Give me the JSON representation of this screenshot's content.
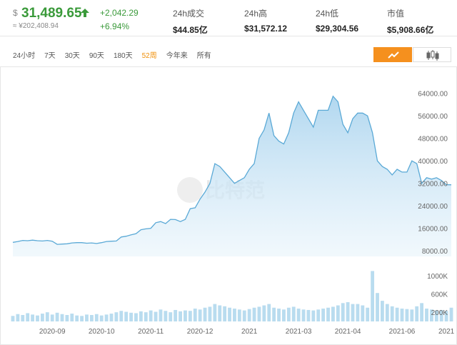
{
  "header": {
    "currency_symbol": "$",
    "price": "31,489.65",
    "cny_price": "≈ ¥202,408.94",
    "change": "+2,042.29",
    "change_percent": "+6.94%",
    "stats": [
      {
        "label": "24h成交",
        "value": "$44.85亿"
      },
      {
        "label": "24h高",
        "value": "$31,572.12"
      },
      {
        "label": "24h低",
        "value": "$29,304.56"
      },
      {
        "label": "市值",
        "value": "$5,908.66亿"
      }
    ]
  },
  "tabs": [
    "24小时",
    "7天",
    "30天",
    "90天",
    "180天",
    "52周",
    "今年来",
    "所有"
  ],
  "active_tab": 5,
  "watermark": "比特范",
  "chart_data": [
    {
      "type": "area",
      "color": "#5aa9d6",
      "grid": false,
      "values": [
        11000,
        11300,
        11700,
        11600,
        11800,
        11600,
        11500,
        11700,
        11400,
        10300,
        10400,
        10500,
        10800,
        10900,
        10900,
        10700,
        10800,
        10600,
        10900,
        11300,
        11400,
        11500,
        12900,
        13200,
        13700,
        14100,
        15500,
        15800,
        16000,
        18000,
        18400,
        17700,
        19200,
        19100,
        18400,
        19200,
        23000,
        23300,
        26400,
        28900,
        32000,
        39000,
        38000,
        36000,
        34000,
        32000,
        33000,
        34000,
        37000,
        39000,
        48000,
        51000,
        57000,
        49000,
        47000,
        46000,
        50000,
        57000,
        61000,
        58000,
        55000,
        52000,
        58000,
        58000,
        58000,
        63000,
        61000,
        53000,
        50000,
        55000,
        57000,
        57000,
        56000,
        50000,
        40000,
        38000,
        37000,
        35000,
        37000,
        36000,
        36000,
        40000,
        39000,
        32000,
        34000,
        33500,
        34000,
        33000,
        31500,
        31489.65
      ],
      "ylim": [
        6000,
        68000
      ],
      "yticks": [
        {
          "value": 8000,
          "label": "8000.00"
        },
        {
          "value": 16000,
          "label": "16000.00"
        },
        {
          "value": 24000,
          "label": "24000.00"
        },
        {
          "value": 32000,
          "label": "32000.00"
        },
        {
          "value": 40000,
          "label": "40000.00"
        },
        {
          "value": 48000,
          "label": "48000.00"
        },
        {
          "value": 56000,
          "label": "56000.00"
        },
        {
          "value": 64000,
          "label": "64000.00"
        }
      ]
    },
    {
      "type": "bar",
      "color": "#b9dcef",
      "grid": false,
      "categories": [
        null,
        null,
        null,
        null,
        null,
        null,
        null,
        null,
        "2020-09",
        null,
        null,
        null,
        null,
        null,
        null,
        null,
        null,
        null,
        "2020-10",
        null,
        null,
        null,
        null,
        null,
        null,
        null,
        null,
        null,
        "2020-11",
        null,
        null,
        null,
        null,
        null,
        null,
        null,
        null,
        null,
        "2020-12",
        null,
        null,
        null,
        null,
        null,
        null,
        null,
        null,
        null,
        "2021",
        null,
        null,
        null,
        null,
        null,
        null,
        null,
        null,
        null,
        "2021-03",
        null,
        null,
        null,
        null,
        null,
        null,
        null,
        null,
        null,
        "2021-04",
        null,
        null,
        null,
        null,
        null,
        null,
        null,
        null,
        null,
        null,
        "2021-06",
        null,
        null,
        null,
        null,
        null,
        null,
        null,
        null,
        "2021",
        null
      ],
      "values": [
        120000,
        160000,
        140000,
        180000,
        150000,
        130000,
        170000,
        200000,
        150000,
        190000,
        160000,
        140000,
        170000,
        130000,
        120000,
        150000,
        140000,
        160000,
        130000,
        150000,
        170000,
        200000,
        230000,
        210000,
        190000,
        180000,
        220000,
        200000,
        240000,
        210000,
        260000,
        230000,
        200000,
        250000,
        220000,
        240000,
        230000,
        280000,
        260000,
        300000,
        320000,
        380000,
        350000,
        330000,
        300000,
        280000,
        260000,
        240000,
        270000,
        300000,
        320000,
        350000,
        380000,
        300000,
        280000,
        260000,
        300000,
        320000,
        280000,
        260000,
        250000,
        240000,
        260000,
        280000,
        300000,
        320000,
        350000,
        400000,
        420000,
        380000,
        380000,
        350000,
        300000,
        1100000,
        620000,
        450000,
        380000,
        330000,
        300000,
        280000,
        270000,
        260000,
        330000,
        400000,
        280000,
        260000,
        240000,
        250000,
        230000,
        300000
      ],
      "ylim": [
        0,
        1200000
      ],
      "yticks": [
        {
          "value": 200000,
          "label": "200K"
        },
        {
          "value": 600000,
          "label": "600K"
        },
        {
          "value": 1000000,
          "label": "1000K"
        }
      ]
    }
  ]
}
